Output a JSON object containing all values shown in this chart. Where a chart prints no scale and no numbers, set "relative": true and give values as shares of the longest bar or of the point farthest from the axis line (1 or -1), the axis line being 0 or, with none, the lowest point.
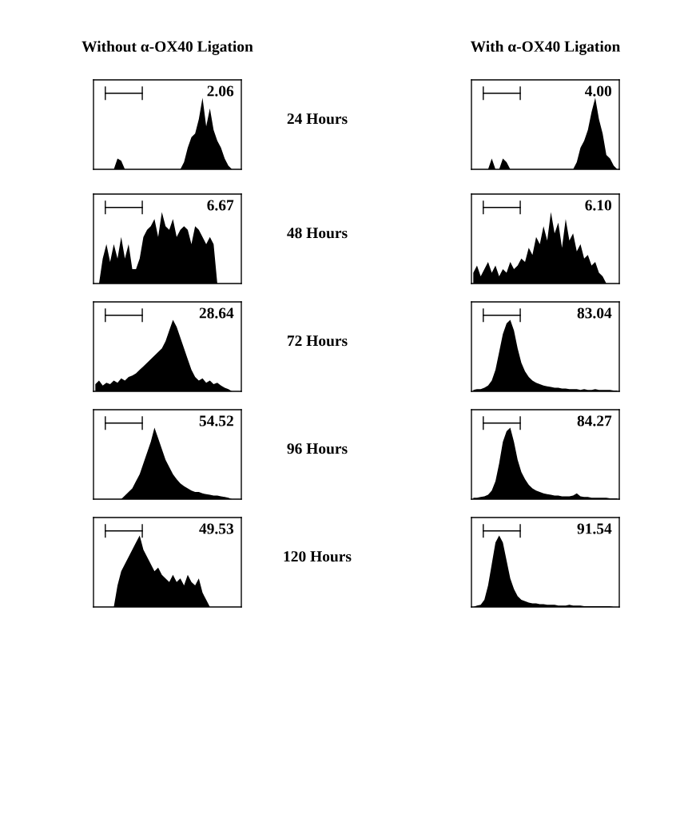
{
  "chart_data": [
    {
      "type": "area",
      "relative": true,
      "color": "#000000",
      "title": "Without α-OX40 Ligation",
      "annotations": [
        "2.06",
        "24 Hours"
      ],
      "categories": [
        null,
        null,
        null,
        null,
        null,
        null,
        null,
        null,
        null,
        null,
        null,
        null,
        null,
        null,
        null,
        null,
        null,
        null,
        null,
        null,
        null,
        null,
        null,
        null,
        null,
        null,
        null,
        null,
        null,
        null,
        null,
        null,
        null,
        null,
        null,
        null,
        null,
        null,
        null,
        null
      ],
      "values": [
        0,
        0,
        0,
        0,
        0,
        0,
        0.15,
        0.12,
        0,
        0,
        0,
        0,
        0,
        0,
        0,
        0,
        0,
        0,
        0,
        0,
        0,
        0,
        0,
        0,
        0.1,
        0.3,
        0.45,
        0.5,
        0.7,
        1.0,
        0.6,
        0.85,
        0.55,
        0.4,
        0.3,
        0.15,
        0.05,
        0,
        0,
        0
      ]
    },
    {
      "type": "area",
      "relative": true,
      "color": "#000000",
      "title": "With α-OX40 Ligation",
      "annotations": [
        "4.00"
      ],
      "categories": [
        null,
        null,
        null,
        null,
        null,
        null,
        null,
        null,
        null,
        null,
        null,
        null,
        null,
        null,
        null,
        null,
        null,
        null,
        null,
        null,
        null,
        null,
        null,
        null,
        null,
        null,
        null,
        null,
        null,
        null,
        null,
        null,
        null,
        null,
        null,
        null,
        null,
        null,
        null,
        null
      ],
      "values": [
        0,
        0,
        0,
        0,
        0,
        0.15,
        0,
        0,
        0.15,
        0.1,
        0,
        0,
        0,
        0,
        0,
        0,
        0,
        0,
        0,
        0,
        0,
        0,
        0,
        0,
        0,
        0,
        0,
        0,
        0.1,
        0.3,
        0.4,
        0.55,
        0.8,
        1.0,
        0.7,
        0.5,
        0.2,
        0.15,
        0.05,
        0
      ]
    },
    {
      "type": "area",
      "relative": true,
      "color": "#000000",
      "annotations": [
        "6.67",
        "48 Hours"
      ],
      "categories": [
        null,
        null,
        null,
        null,
        null,
        null,
        null,
        null,
        null,
        null,
        null,
        null,
        null,
        null,
        null,
        null,
        null,
        null,
        null,
        null,
        null,
        null,
        null,
        null,
        null,
        null,
        null,
        null,
        null,
        null,
        null,
        null,
        null,
        null,
        null,
        null,
        null,
        null,
        null,
        null
      ],
      "values": [
        0,
        0,
        0.35,
        0.55,
        0.3,
        0.55,
        0.35,
        0.65,
        0.35,
        0.55,
        0.2,
        0.2,
        0.35,
        0.65,
        0.75,
        0.8,
        0.9,
        0.65,
        1.0,
        0.8,
        0.75,
        0.9,
        0.65,
        0.75,
        0.8,
        0.75,
        0.55,
        0.8,
        0.75,
        0.65,
        0.55,
        0.65,
        0.55,
        0,
        0,
        0,
        0,
        0,
        0,
        0
      ]
    },
    {
      "type": "area",
      "relative": true,
      "color": "#000000",
      "annotations": [
        "6.10"
      ],
      "categories": [
        null,
        null,
        null,
        null,
        null,
        null,
        null,
        null,
        null,
        null,
        null,
        null,
        null,
        null,
        null,
        null,
        null,
        null,
        null,
        null,
        null,
        null,
        null,
        null,
        null,
        null,
        null,
        null,
        null,
        null,
        null,
        null,
        null,
        null,
        null,
        null,
        null,
        null,
        null,
        null
      ],
      "values": [
        0.15,
        0.25,
        0.1,
        0.2,
        0.3,
        0.15,
        0.25,
        0.1,
        0.2,
        0.15,
        0.3,
        0.2,
        0.25,
        0.35,
        0.3,
        0.5,
        0.4,
        0.65,
        0.55,
        0.8,
        0.6,
        1.0,
        0.7,
        0.85,
        0.5,
        0.9,
        0.6,
        0.7,
        0.45,
        0.55,
        0.35,
        0.4,
        0.25,
        0.3,
        0.15,
        0.1,
        0,
        0,
        0,
        0
      ]
    },
    {
      "type": "area",
      "relative": true,
      "color": "#000000",
      "annotations": [
        "28.64",
        "72 Hours"
      ],
      "categories": [
        null,
        null,
        null,
        null,
        null,
        null,
        null,
        null,
        null,
        null,
        null,
        null,
        null,
        null,
        null,
        null,
        null,
        null,
        null,
        null,
        null,
        null,
        null,
        null,
        null,
        null,
        null,
        null,
        null,
        null,
        null,
        null,
        null,
        null,
        null,
        null,
        null,
        null,
        null,
        null
      ],
      "values": [
        0.1,
        0.15,
        0.08,
        0.12,
        0.1,
        0.15,
        0.12,
        0.18,
        0.15,
        0.2,
        0.22,
        0.25,
        0.3,
        0.35,
        0.4,
        0.45,
        0.5,
        0.55,
        0.6,
        0.7,
        0.85,
        1.0,
        0.9,
        0.75,
        0.6,
        0.45,
        0.3,
        0.2,
        0.15,
        0.18,
        0.12,
        0.15,
        0.1,
        0.12,
        0.08,
        0.05,
        0.03,
        0,
        0,
        0
      ]
    },
    {
      "type": "area",
      "relative": true,
      "color": "#000000",
      "annotations": [
        "83.04"
      ],
      "categories": [
        null,
        null,
        null,
        null,
        null,
        null,
        null,
        null,
        null,
        null,
        null,
        null,
        null,
        null,
        null,
        null,
        null,
        null,
        null,
        null,
        null,
        null,
        null,
        null,
        null,
        null,
        null,
        null,
        null,
        null,
        null,
        null,
        null,
        null,
        null,
        null,
        null,
        null,
        null,
        null
      ],
      "values": [
        0.02,
        0.03,
        0.03,
        0.05,
        0.08,
        0.15,
        0.3,
        0.55,
        0.8,
        0.95,
        1.0,
        0.85,
        0.6,
        0.4,
        0.28,
        0.2,
        0.15,
        0.12,
        0.1,
        0.08,
        0.07,
        0.06,
        0.05,
        0.05,
        0.04,
        0.04,
        0.03,
        0.03,
        0.03,
        0.02,
        0.03,
        0.02,
        0.02,
        0.03,
        0.02,
        0.02,
        0.02,
        0.02,
        0.01,
        0.01
      ]
    },
    {
      "type": "area",
      "relative": true,
      "color": "#000000",
      "annotations": [
        "54.52",
        "96 Hours"
      ],
      "categories": [
        null,
        null,
        null,
        null,
        null,
        null,
        null,
        null,
        null,
        null,
        null,
        null,
        null,
        null,
        null,
        null,
        null,
        null,
        null,
        null,
        null,
        null,
        null,
        null,
        null,
        null,
        null,
        null,
        null,
        null,
        null,
        null,
        null,
        null,
        null,
        null,
        null,
        null,
        null,
        null
      ],
      "values": [
        0,
        0,
        0,
        0,
        0,
        0,
        0,
        0,
        0.05,
        0.1,
        0.15,
        0.25,
        0.35,
        0.5,
        0.65,
        0.8,
        1.0,
        0.85,
        0.7,
        0.55,
        0.45,
        0.35,
        0.28,
        0.22,
        0.18,
        0.15,
        0.12,
        0.1,
        0.1,
        0.08,
        0.07,
        0.06,
        0.05,
        0.05,
        0.04,
        0.03,
        0.02,
        0,
        0,
        0
      ]
    },
    {
      "type": "area",
      "relative": true,
      "color": "#000000",
      "annotations": [
        "84.27"
      ],
      "categories": [
        null,
        null,
        null,
        null,
        null,
        null,
        null,
        null,
        null,
        null,
        null,
        null,
        null,
        null,
        null,
        null,
        null,
        null,
        null,
        null,
        null,
        null,
        null,
        null,
        null,
        null,
        null,
        null,
        null,
        null,
        null,
        null,
        null,
        null,
        null,
        null,
        null,
        null,
        null,
        null
      ],
      "values": [
        0.02,
        0.02,
        0.03,
        0.04,
        0.06,
        0.12,
        0.25,
        0.5,
        0.8,
        0.95,
        1.0,
        0.8,
        0.55,
        0.38,
        0.28,
        0.2,
        0.15,
        0.12,
        0.1,
        0.08,
        0.07,
        0.06,
        0.05,
        0.05,
        0.04,
        0.04,
        0.04,
        0.05,
        0.08,
        0.04,
        0.03,
        0.03,
        0.02,
        0.02,
        0.02,
        0.02,
        0.02,
        0.01,
        0.01,
        0.01
      ]
    },
    {
      "type": "area",
      "relative": true,
      "color": "#000000",
      "annotations": [
        "49.53",
        "120 Hours"
      ],
      "categories": [
        null,
        null,
        null,
        null,
        null,
        null,
        null,
        null,
        null,
        null,
        null,
        null,
        null,
        null,
        null,
        null,
        null,
        null,
        null,
        null,
        null,
        null,
        null,
        null,
        null,
        null,
        null,
        null,
        null,
        null,
        null,
        null,
        null,
        null,
        null,
        null,
        null,
        null,
        null,
        null
      ],
      "values": [
        0,
        0,
        0,
        0,
        0,
        0,
        0.3,
        0.5,
        0.6,
        0.7,
        0.8,
        0.9,
        1.0,
        0.8,
        0.7,
        0.6,
        0.5,
        0.55,
        0.45,
        0.4,
        0.35,
        0.45,
        0.35,
        0.4,
        0.3,
        0.45,
        0.35,
        0.3,
        0.4,
        0.2,
        0.1,
        0,
        0,
        0,
        0,
        0,
        0,
        0,
        0,
        0
      ]
    },
    {
      "type": "area",
      "relative": true,
      "color": "#000000",
      "annotations": [
        "91.54"
      ],
      "categories": [
        null,
        null,
        null,
        null,
        null,
        null,
        null,
        null,
        null,
        null,
        null,
        null,
        null,
        null,
        null,
        null,
        null,
        null,
        null,
        null,
        null,
        null,
        null,
        null,
        null,
        null,
        null,
        null,
        null,
        null,
        null,
        null,
        null,
        null,
        null,
        null,
        null,
        null,
        null,
        null
      ],
      "values": [
        0,
        0.02,
        0.03,
        0.1,
        0.3,
        0.6,
        0.9,
        1.0,
        0.9,
        0.65,
        0.4,
        0.25,
        0.15,
        0.1,
        0.08,
        0.06,
        0.05,
        0.05,
        0.04,
        0.04,
        0.03,
        0.03,
        0.03,
        0.02,
        0.02,
        0.02,
        0.03,
        0.02,
        0.02,
        0.02,
        0.01,
        0.01,
        0.01,
        0.01,
        0.01,
        0.01,
        0.01,
        0.01,
        0,
        0
      ]
    }
  ]
}
